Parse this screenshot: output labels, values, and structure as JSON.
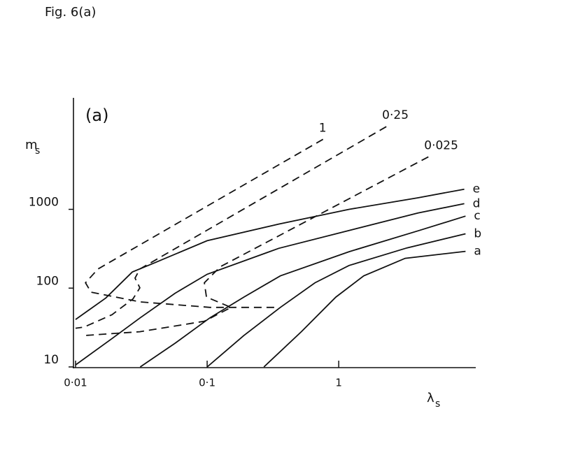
{
  "chart_data": {
    "type": "line",
    "title": "Fig. 6(a)",
    "panel_label": "(a)",
    "ylabel": "m",
    "ylabel_sub": "s",
    "xlabel": "λ",
    "xlabel_sub": "s",
    "log_x": true,
    "log_y": true,
    "xlim": [
      0.01,
      11
    ],
    "ylim": [
      10,
      26000
    ],
    "xticks": [
      {
        "value": 0.01,
        "label": "0·01"
      },
      {
        "value": 0.1,
        "label": "0·1"
      },
      1
    ],
    "yticks": [
      10,
      100,
      1000
    ],
    "grid": false,
    "color": "#111111",
    "series": [
      {
        "name": "e",
        "dash": false,
        "x": [
          0.01,
          0.017,
          0.027,
          0.04,
          0.1,
          0.35,
          1.2,
          4,
          9
        ],
        "values": [
          40,
          75,
          160,
          210,
          400,
          650,
          1000,
          1400,
          1800
        ]
      },
      {
        "name": "d",
        "dash": false,
        "x": [
          0.01,
          0.019,
          0.031,
          0.057,
          0.1,
          0.35,
          1.2,
          4,
          9
        ],
        "values": [
          10.6,
          23,
          42,
          86,
          150,
          320,
          540,
          900,
          1180
        ]
      },
      {
        "name": "c",
        "dash": false,
        "x": [
          0.031,
          0.057,
          0.105,
          0.19,
          0.36,
          1.2,
          4.1,
          9.2
        ],
        "values": [
          10,
          20,
          42,
          77,
          143,
          290,
          540,
          820
        ]
      },
      {
        "name": "b",
        "dash": false,
        "x": [
          0.1,
          0.19,
          0.36,
          0.66,
          1.2,
          3.3,
          9.2
        ],
        "values": [
          10,
          25,
          57,
          117,
          194,
          324,
          489
        ]
      },
      {
        "name": "a",
        "dash": false,
        "x": [
          0.27,
          0.52,
          0.95,
          1.55,
          3.2,
          9.2
        ],
        "values": [
          10,
          28,
          77,
          143,
          239,
          293
        ]
      },
      {
        "name": "1",
        "dash": true,
        "x": [
          0.76,
          0.0148,
          0.0119,
          0.0131,
          0.0308,
          0.105,
          0.336
        ],
        "values": [
          7740,
          175,
          117,
          89,
          67,
          57,
          57
        ]
      },
      {
        "name": "0·25",
        "dash": true,
        "x": [
          2.3,
          0.0308,
          0.0283,
          0.0308,
          0.0273,
          0.0189,
          0.0116,
          0.01
        ],
        "values": [
          11200,
          175,
          134,
          101,
          73,
          46,
          32,
          31
        ]
      },
      {
        "name": "0·025",
        "dash": true,
        "x": [
          4.8,
          0.126,
          0.0953,
          0.0988,
          0.152,
          0.0953,
          0.0308,
          0.0116
        ],
        "values": [
          4640,
          187,
          117,
          77,
          57,
          38,
          28,
          25
        ]
      }
    ]
  }
}
